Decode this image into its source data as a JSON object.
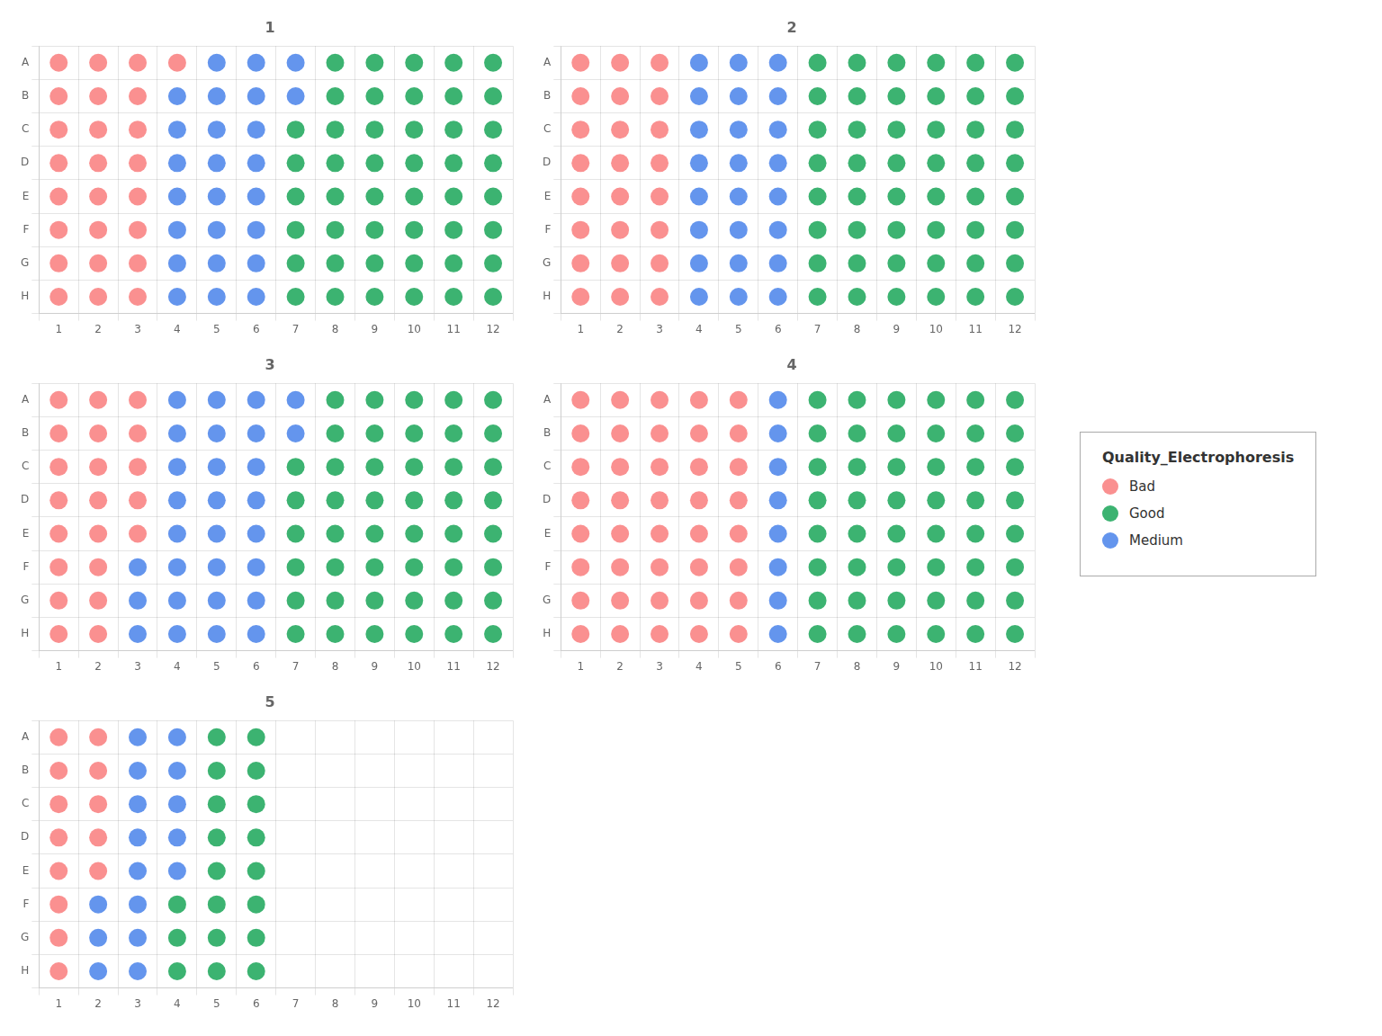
{
  "chart_data": [
    {
      "type": "scatter",
      "title": "1",
      "categories": [
        1,
        2,
        3,
        4,
        5,
        6,
        7,
        8,
        9,
        10,
        11,
        12
      ],
      "y_categories": [
        "A",
        "B",
        "C",
        "D",
        "E",
        "F",
        "G",
        "H"
      ],
      "cells": [
        [
          "Bad",
          "Bad",
          "Bad",
          "Bad",
          "Medium",
          "Medium",
          "Medium",
          "Good",
          "Good",
          "Good",
          "Good",
          "Good"
        ],
        [
          "Bad",
          "Bad",
          "Bad",
          "Medium",
          "Medium",
          "Medium",
          "Medium",
          "Good",
          "Good",
          "Good",
          "Good",
          "Good"
        ],
        [
          "Bad",
          "Bad",
          "Bad",
          "Medium",
          "Medium",
          "Medium",
          "Good",
          "Good",
          "Good",
          "Good",
          "Good",
          "Good"
        ],
        [
          "Bad",
          "Bad",
          "Bad",
          "Medium",
          "Medium",
          "Medium",
          "Good",
          "Good",
          "Good",
          "Good",
          "Good",
          "Good"
        ],
        [
          "Bad",
          "Bad",
          "Bad",
          "Medium",
          "Medium",
          "Medium",
          "Good",
          "Good",
          "Good",
          "Good",
          "Good",
          "Good"
        ],
        [
          "Bad",
          "Bad",
          "Bad",
          "Medium",
          "Medium",
          "Medium",
          "Good",
          "Good",
          "Good",
          "Good",
          "Good",
          "Good"
        ],
        [
          "Bad",
          "Bad",
          "Bad",
          "Medium",
          "Medium",
          "Medium",
          "Good",
          "Good",
          "Good",
          "Good",
          "Good",
          "Good"
        ],
        [
          "Bad",
          "Bad",
          "Bad",
          "Medium",
          "Medium",
          "Medium",
          "Good",
          "Good",
          "Good",
          "Good",
          "Good",
          "Good"
        ]
      ],
      "grid": true
    },
    {
      "type": "scatter",
      "title": "2",
      "categories": [
        1,
        2,
        3,
        4,
        5,
        6,
        7,
        8,
        9,
        10,
        11,
        12
      ],
      "y_categories": [
        "A",
        "B",
        "C",
        "D",
        "E",
        "F",
        "G",
        "H"
      ],
      "cells": [
        [
          "Bad",
          "Bad",
          "Bad",
          "Medium",
          "Medium",
          "Medium",
          "Good",
          "Good",
          "Good",
          "Good",
          "Good",
          "Good"
        ],
        [
          "Bad",
          "Bad",
          "Bad",
          "Medium",
          "Medium",
          "Medium",
          "Good",
          "Good",
          "Good",
          "Good",
          "Good",
          "Good"
        ],
        [
          "Bad",
          "Bad",
          "Bad",
          "Medium",
          "Medium",
          "Medium",
          "Good",
          "Good",
          "Good",
          "Good",
          "Good",
          "Good"
        ],
        [
          "Bad",
          "Bad",
          "Bad",
          "Medium",
          "Medium",
          "Medium",
          "Good",
          "Good",
          "Good",
          "Good",
          "Good",
          "Good"
        ],
        [
          "Bad",
          "Bad",
          "Bad",
          "Medium",
          "Medium",
          "Medium",
          "Good",
          "Good",
          "Good",
          "Good",
          "Good",
          "Good"
        ],
        [
          "Bad",
          "Bad",
          "Bad",
          "Medium",
          "Medium",
          "Medium",
          "Good",
          "Good",
          "Good",
          "Good",
          "Good",
          "Good"
        ],
        [
          "Bad",
          "Bad",
          "Bad",
          "Medium",
          "Medium",
          "Medium",
          "Good",
          "Good",
          "Good",
          "Good",
          "Good",
          "Good"
        ],
        [
          "Bad",
          "Bad",
          "Bad",
          "Medium",
          "Medium",
          "Medium",
          "Good",
          "Good",
          "Good",
          "Good",
          "Good",
          "Good"
        ]
      ],
      "grid": true
    },
    {
      "type": "scatter",
      "title": "3",
      "categories": [
        1,
        2,
        3,
        4,
        5,
        6,
        7,
        8,
        9,
        10,
        11,
        12
      ],
      "y_categories": [
        "A",
        "B",
        "C",
        "D",
        "E",
        "F",
        "G",
        "H"
      ],
      "cells": [
        [
          "Bad",
          "Bad",
          "Bad",
          "Medium",
          "Medium",
          "Medium",
          "Medium",
          "Good",
          "Good",
          "Good",
          "Good",
          "Good"
        ],
        [
          "Bad",
          "Bad",
          "Bad",
          "Medium",
          "Medium",
          "Medium",
          "Medium",
          "Good",
          "Good",
          "Good",
          "Good",
          "Good"
        ],
        [
          "Bad",
          "Bad",
          "Bad",
          "Medium",
          "Medium",
          "Medium",
          "Good",
          "Good",
          "Good",
          "Good",
          "Good",
          "Good"
        ],
        [
          "Bad",
          "Bad",
          "Bad",
          "Medium",
          "Medium",
          "Medium",
          "Good",
          "Good",
          "Good",
          "Good",
          "Good",
          "Good"
        ],
        [
          "Bad",
          "Bad",
          "Bad",
          "Medium",
          "Medium",
          "Medium",
          "Good",
          "Good",
          "Good",
          "Good",
          "Good",
          "Good"
        ],
        [
          "Bad",
          "Bad",
          "Medium",
          "Medium",
          "Medium",
          "Medium",
          "Good",
          "Good",
          "Good",
          "Good",
          "Good",
          "Good"
        ],
        [
          "Bad",
          "Bad",
          "Medium",
          "Medium",
          "Medium",
          "Medium",
          "Good",
          "Good",
          "Good",
          "Good",
          "Good",
          "Good"
        ],
        [
          "Bad",
          "Bad",
          "Medium",
          "Medium",
          "Medium",
          "Medium",
          "Good",
          "Good",
          "Good",
          "Good",
          "Good",
          "Good"
        ]
      ],
      "grid": true
    },
    {
      "type": "scatter",
      "title": "4",
      "categories": [
        1,
        2,
        3,
        4,
        5,
        6,
        7,
        8,
        9,
        10,
        11,
        12
      ],
      "y_categories": [
        "A",
        "B",
        "C",
        "D",
        "E",
        "F",
        "G",
        "H"
      ],
      "cells": [
        [
          "Bad",
          "Bad",
          "Bad",
          "Bad",
          "Bad",
          "Medium",
          "Good",
          "Good",
          "Good",
          "Good",
          "Good",
          "Good"
        ],
        [
          "Bad",
          "Bad",
          "Bad",
          "Bad",
          "Bad",
          "Medium",
          "Good",
          "Good",
          "Good",
          "Good",
          "Good",
          "Good"
        ],
        [
          "Bad",
          "Bad",
          "Bad",
          "Bad",
          "Bad",
          "Medium",
          "Good",
          "Good",
          "Good",
          "Good",
          "Good",
          "Good"
        ],
        [
          "Bad",
          "Bad",
          "Bad",
          "Bad",
          "Bad",
          "Medium",
          "Good",
          "Good",
          "Good",
          "Good",
          "Good",
          "Good"
        ],
        [
          "Bad",
          "Bad",
          "Bad",
          "Bad",
          "Bad",
          "Medium",
          "Good",
          "Good",
          "Good",
          "Good",
          "Good",
          "Good"
        ],
        [
          "Bad",
          "Bad",
          "Bad",
          "Bad",
          "Bad",
          "Medium",
          "Good",
          "Good",
          "Good",
          "Good",
          "Good",
          "Good"
        ],
        [
          "Bad",
          "Bad",
          "Bad",
          "Bad",
          "Bad",
          "Medium",
          "Good",
          "Good",
          "Good",
          "Good",
          "Good",
          "Good"
        ],
        [
          "Bad",
          "Bad",
          "Bad",
          "Bad",
          "Bad",
          "Medium",
          "Good",
          "Good",
          "Good",
          "Good",
          "Good",
          "Good"
        ]
      ],
      "grid": true
    },
    {
      "type": "scatter",
      "title": "5",
      "categories": [
        1,
        2,
        3,
        4,
        5,
        6,
        7,
        8,
        9,
        10,
        11,
        12
      ],
      "y_categories": [
        "A",
        "B",
        "C",
        "D",
        "E",
        "F",
        "G",
        "H"
      ],
      "cells": [
        [
          "Bad",
          "Bad",
          "Medium",
          "Medium",
          "Good",
          "Good",
          null,
          null,
          null,
          null,
          null,
          null
        ],
        [
          "Bad",
          "Bad",
          "Medium",
          "Medium",
          "Good",
          "Good",
          null,
          null,
          null,
          null,
          null,
          null
        ],
        [
          "Bad",
          "Bad",
          "Medium",
          "Medium",
          "Good",
          "Good",
          null,
          null,
          null,
          null,
          null,
          null
        ],
        [
          "Bad",
          "Bad",
          "Medium",
          "Medium",
          "Good",
          "Good",
          null,
          null,
          null,
          null,
          null,
          null
        ],
        [
          "Bad",
          "Bad",
          "Medium",
          "Medium",
          "Good",
          "Good",
          null,
          null,
          null,
          null,
          null,
          null
        ],
        [
          "Bad",
          "Medium",
          "Medium",
          "Good",
          "Good",
          "Good",
          null,
          null,
          null,
          null,
          null,
          null
        ],
        [
          "Bad",
          "Medium",
          "Medium",
          "Good",
          "Good",
          "Good",
          null,
          null,
          null,
          null,
          null,
          null
        ],
        [
          "Bad",
          "Medium",
          "Medium",
          "Good",
          "Good",
          "Good",
          null,
          null,
          null,
          null,
          null,
          null
        ]
      ],
      "grid": true
    }
  ],
  "legend_title": "Quality_Electrophoresis",
  "series": [
    {
      "name": "Bad",
      "color": "#FA9090"
    },
    {
      "name": "Good",
      "color": "#3CB371"
    },
    {
      "name": "Medium",
      "color": "#6495ED"
    }
  ]
}
